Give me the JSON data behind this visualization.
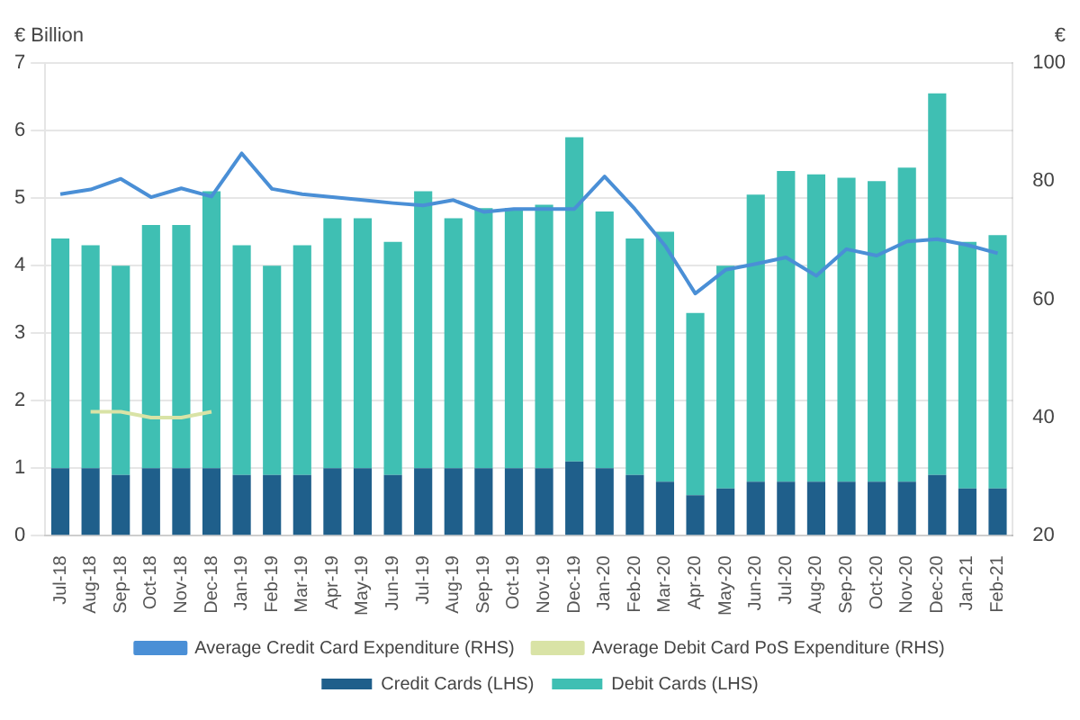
{
  "chart_data": {
    "type": "bar",
    "ylabel": "€ Billion",
    "y2label": "€",
    "categories": [
      "Jul-18",
      "Aug-18",
      "Sep-18",
      "Oct-18",
      "Nov-18",
      "Dec-18",
      "Jan-19",
      "Feb-19",
      "Mar-19",
      "Apr-19",
      "May-19",
      "Jun-19",
      "Jul-19",
      "Aug-19",
      "Sep-19",
      "Oct-19",
      "Nov-19",
      "Dec-19",
      "Jan-20",
      "Feb-20",
      "Mar-20",
      "Apr-20",
      "May-20",
      "Jun-20",
      "Jul-20",
      "Aug-20",
      "Sep-20",
      "Oct-20",
      "Nov-20",
      "Dec-20",
      "Jan-21",
      "Feb-21"
    ],
    "stacked": true,
    "series": [
      {
        "name": "Credit Cards (LHS)",
        "color": "#1f5f8b",
        "values": [
          1.0,
          1.0,
          0.9,
          1.0,
          1.0,
          1.0,
          0.9,
          0.9,
          0.9,
          1.0,
          1.0,
          0.9,
          1.0,
          1.0,
          1.0,
          1.0,
          1.0,
          1.1,
          1.0,
          0.9,
          0.8,
          0.6,
          0.7,
          0.8,
          0.8,
          0.8,
          0.8,
          0.8,
          0.8,
          0.9,
          0.7,
          0.7
        ]
      },
      {
        "name": "Debit Cards (LHS)",
        "color": "#3fbfb3",
        "values": [
          3.4,
          3.3,
          3.1,
          3.6,
          3.6,
          4.1,
          3.4,
          3.1,
          3.4,
          3.7,
          3.7,
          3.45,
          4.1,
          3.7,
          3.85,
          3.85,
          3.9,
          4.8,
          3.8,
          3.5,
          3.7,
          2.7,
          3.3,
          4.25,
          4.6,
          4.55,
          4.5,
          4.45,
          4.65,
          5.65,
          3.65,
          3.75
        ]
      },
      {
        "name": "Average Credit Card Expenditure (RHS)",
        "type": "line",
        "axis": "y2",
        "color": "#4a8fd6",
        "values": [
          77.8,
          78.6,
          80.4,
          77.3,
          78.8,
          77.4,
          84.7,
          78.7,
          77.8,
          77.3,
          76.8,
          76.3,
          75.9,
          76.8,
          74.8,
          75.3,
          75.3,
          75.3,
          80.8,
          75.3,
          69.1,
          61,
          65,
          66,
          67.1,
          64,
          68.5,
          67.4,
          69.8,
          70.2,
          69.2,
          67.8
        ]
      },
      {
        "name": "Average Debit Card PoS Expenditure (RHS)",
        "type": "line",
        "axis": "y2",
        "color": "#d9e3a6",
        "values": [
          null,
          41,
          41,
          40,
          40,
          41,
          null,
          null,
          null,
          null,
          null,
          null,
          null,
          null,
          null,
          null,
          null,
          null,
          null,
          null,
          null,
          null,
          null,
          null,
          null,
          null,
          null,
          null,
          null,
          null,
          null,
          null
        ]
      }
    ],
    "ylim": [
      0,
      7
    ],
    "yticks": [
      0,
      1,
      2,
      3,
      4,
      5,
      6,
      7
    ],
    "y2lim": [
      20,
      100
    ],
    "y2ticks": [
      20,
      40,
      60,
      80,
      100
    ],
    "grid": "y",
    "legend": "bottom"
  }
}
